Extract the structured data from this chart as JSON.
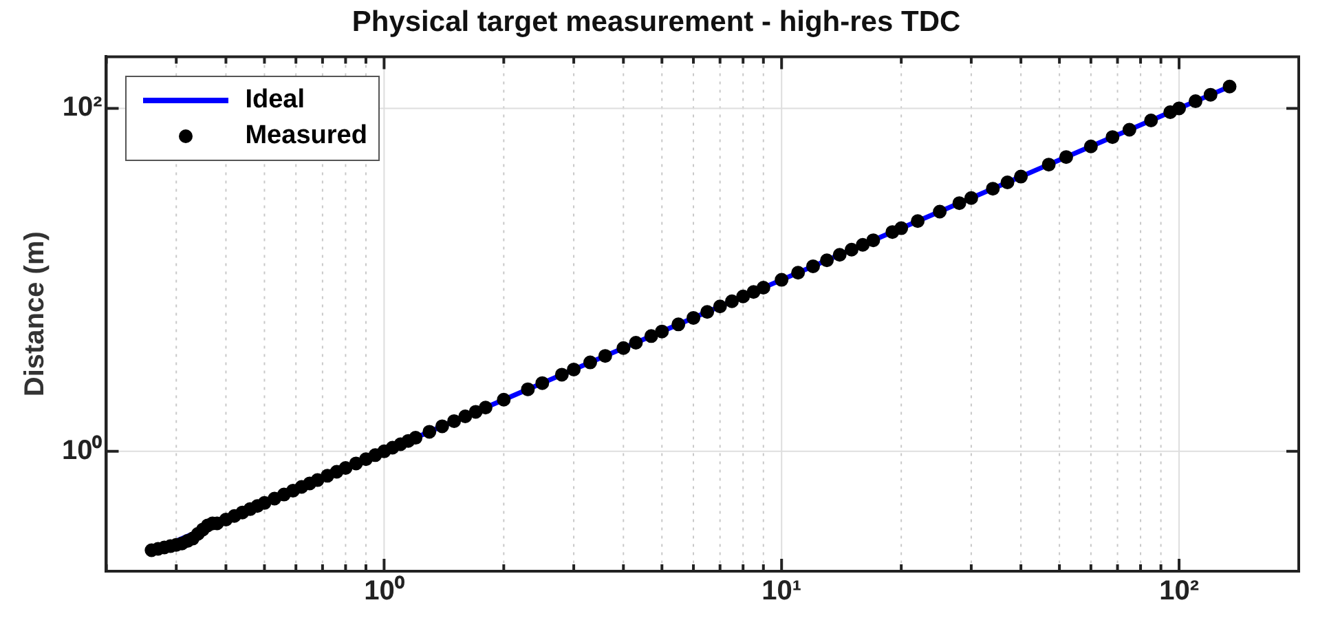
{
  "chart_data": {
    "type": "scatter",
    "title": "Physical target measurement - high-res TDC",
    "ylabel": "Distance (m)",
    "log": "xy",
    "grid": true,
    "legend": "top left",
    "xlim": [
      0.2,
      200
    ],
    "ylim": [
      0.2,
      200
    ],
    "xticks": [
      {
        "value": 0.2,
        "label": null
      },
      {
        "value": 0.3,
        "label": null
      },
      {
        "value": 0.4,
        "label": null
      },
      {
        "value": 0.5,
        "label": null
      },
      {
        "value": 0.6,
        "label": null
      },
      {
        "value": 0.7,
        "label": null
      },
      {
        "value": 0.8,
        "label": null
      },
      {
        "value": 0.9,
        "label": null
      },
      {
        "value": 1,
        "label": "10⁰"
      },
      {
        "value": 2,
        "label": null
      },
      {
        "value": 3,
        "label": null
      },
      {
        "value": 4,
        "label": null
      },
      {
        "value": 5,
        "label": null
      },
      {
        "value": 6,
        "label": null
      },
      {
        "value": 7,
        "label": null
      },
      {
        "value": 8,
        "label": null
      },
      {
        "value": 9,
        "label": null
      },
      {
        "value": 10,
        "label": "10¹"
      },
      {
        "value": 20,
        "label": null
      },
      {
        "value": 30,
        "label": null
      },
      {
        "value": 40,
        "label": null
      },
      {
        "value": 50,
        "label": null
      },
      {
        "value": 60,
        "label": null
      },
      {
        "value": 70,
        "label": null
      },
      {
        "value": 80,
        "label": null
      },
      {
        "value": 90,
        "label": null
      },
      {
        "value": 100,
        "label": "10²"
      }
    ],
    "yticks": [
      {
        "value": 1,
        "label": "10⁰"
      },
      {
        "value": 100,
        "label": "10²"
      }
    ],
    "series": [
      {
        "name": "Ideal",
        "type": "line",
        "color": "#0000ff",
        "marker": "none",
        "line_style": "solid",
        "x": [
          0.26,
          134
        ],
        "values": [
          0.26,
          134
        ]
      },
      {
        "name": "Measured",
        "type": "scatter",
        "color": "#000000",
        "marker": "circle",
        "x": [
          0.26,
          0.27,
          0.28,
          0.29,
          0.3,
          0.31,
          0.32,
          0.33,
          0.34,
          0.35,
          0.36,
          0.37,
          0.38,
          0.4,
          0.42,
          0.44,
          0.46,
          0.48,
          0.5,
          0.53,
          0.56,
          0.59,
          0.62,
          0.65,
          0.68,
          0.72,
          0.76,
          0.8,
          0.85,
          0.9,
          0.95,
          1,
          1.05,
          1.1,
          1.15,
          1.2,
          1.3,
          1.4,
          1.5,
          1.6,
          1.7,
          1.8,
          2,
          2.3,
          2.5,
          2.8,
          3,
          3.3,
          3.6,
          4,
          4.3,
          4.7,
          5,
          5.5,
          6,
          6.5,
          7,
          7.5,
          8,
          8.5,
          9,
          10,
          11,
          12,
          13,
          14,
          15,
          16,
          17,
          19,
          20,
          22,
          25,
          28,
          30,
          34,
          37,
          40,
          47,
          52,
          60,
          68,
          75,
          85,
          95,
          100,
          110,
          120,
          134
        ],
        "values": [
          0.265,
          0.27,
          0.275,
          0.28,
          0.285,
          0.29,
          0.3,
          0.31,
          0.33,
          0.35,
          0.37,
          0.38,
          0.38,
          0.4,
          0.42,
          0.44,
          0.46,
          0.48,
          0.5,
          0.53,
          0.56,
          0.59,
          0.62,
          0.65,
          0.68,
          0.72,
          0.76,
          0.8,
          0.85,
          0.9,
          0.95,
          1,
          1.05,
          1.1,
          1.15,
          1.2,
          1.3,
          1.4,
          1.5,
          1.6,
          1.7,
          1.8,
          2,
          2.3,
          2.5,
          2.8,
          3,
          3.3,
          3.6,
          4,
          4.3,
          4.7,
          5,
          5.5,
          6,
          6.5,
          7,
          7.5,
          8,
          8.5,
          9,
          10,
          11,
          12,
          13,
          14,
          15,
          16,
          17,
          19,
          20,
          22,
          25,
          28,
          30,
          34,
          37,
          40,
          47,
          52,
          60,
          68,
          75,
          85,
          95,
          100,
          110,
          120,
          134
        ]
      }
    ]
  }
}
